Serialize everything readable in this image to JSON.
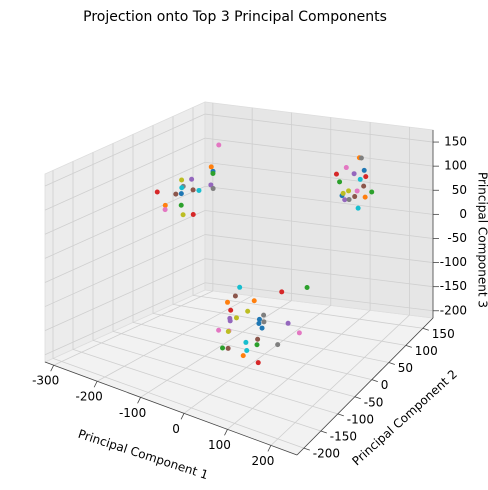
{
  "chart_data": {
    "type": "scatter3d",
    "title": "Projection onto Top 3 Principal Components",
    "xlabel": "Principal Component 1",
    "ylabel": "Principal Component 2",
    "zlabel": "Principal Component 3",
    "xlim": [
      -320,
      260
    ],
    "xticks": [
      -300,
      -200,
      -100,
      0,
      100,
      200
    ],
    "ylim": [
      -220,
      180
    ],
    "yticks": [
      -200,
      -150,
      -100,
      -50,
      0,
      50,
      100,
      150
    ],
    "zlim": [
      -215,
      175
    ],
    "zticks": [
      -200,
      -150,
      -100,
      -50,
      0,
      50,
      100,
      150
    ],
    "grid": true,
    "series": [
      {
        "color": "#1f77b4",
        "x": [
          -260,
          -230,
          40,
          90,
          130,
          110,
          20
        ],
        "y": [
          60,
          110,
          -60,
          -120,
          130,
          90,
          -30
        ],
        "z": [
          40,
          70,
          -100,
          -60,
          110,
          80,
          -140
        ]
      },
      {
        "color": "#ff7f0e",
        "x": [
          -280,
          -215,
          10,
          70,
          150,
          100,
          -10
        ],
        "y": [
          40,
          90,
          -40,
          -140,
          110,
          150,
          -90
        ],
        "z": [
          20,
          90,
          -80,
          -120,
          70,
          120,
          -60
        ]
      },
      {
        "color": "#2ca02c",
        "x": [
          -240,
          -270,
          60,
          120,
          95,
          140,
          30
        ],
        "y": [
          120,
          70,
          -90,
          -20,
          100,
          140,
          -150
        ],
        "z": [
          60,
          10,
          -130,
          -40,
          100,
          60,
          -110
        ]
      },
      {
        "color": "#d62728",
        "x": [
          -250,
          -290,
          -20,
          80,
          125,
          105,
          50
        ],
        "y": [
          80,
          30,
          -70,
          -110,
          140,
          80,
          -10
        ],
        "z": [
          -10,
          50,
          -90,
          -150,
          90,
          130,
          -70
        ]
      },
      {
        "color": "#9467bd",
        "x": [
          -225,
          -255,
          30,
          100,
          140,
          90,
          -30
        ],
        "y": [
          50,
          130,
          -130,
          -50,
          90,
          120,
          -60
        ],
        "z": [
          80,
          30,
          -60,
          -100,
          130,
          50,
          -120
        ]
      },
      {
        "color": "#8c564b",
        "x": [
          -270,
          -235,
          70,
          0,
          115,
          155,
          60
        ],
        "y": [
          100,
          20,
          -100,
          -80,
          120,
          100,
          -170
        ],
        "z": [
          30,
          60,
          -110,
          -50,
          60,
          100,
          -90
        ]
      },
      {
        "color": "#e377c2",
        "x": [
          -245,
          -300,
          45,
          110,
          130,
          85,
          -5
        ],
        "y": [
          140,
          60,
          -150,
          -30,
          110,
          130,
          -120
        ],
        "z": [
          110,
          0,
          -70,
          -130,
          80,
          110,
          -100
        ]
      },
      {
        "color": "#7f7f7f",
        "x": [
          -265,
          -220,
          15,
          85,
          105,
          145,
          75
        ],
        "y": [
          70,
          100,
          -20,
          -100,
          150,
          70,
          -50
        ],
        "z": [
          50,
          40,
          -120,
          -70,
          120,
          90,
          -150
        ]
      },
      {
        "color": "#bcbd22",
        "x": [
          -285,
          -240,
          55,
          -15,
          135,
          95,
          35
        ],
        "y": [
          90,
          40,
          -110,
          -60,
          80,
          110,
          -140
        ],
        "z": [
          -20,
          80,
          -50,
          -110,
          100,
          70,
          -80
        ]
      },
      {
        "color": "#17becf",
        "x": [
          -230,
          -275,
          25,
          95,
          120,
          150,
          -25
        ],
        "y": [
          30,
          120,
          -80,
          -160,
          130,
          90,
          -40
        ],
        "z": [
          70,
          20,
          -140,
          -90,
          90,
          60,
          -60
        ]
      }
    ]
  }
}
